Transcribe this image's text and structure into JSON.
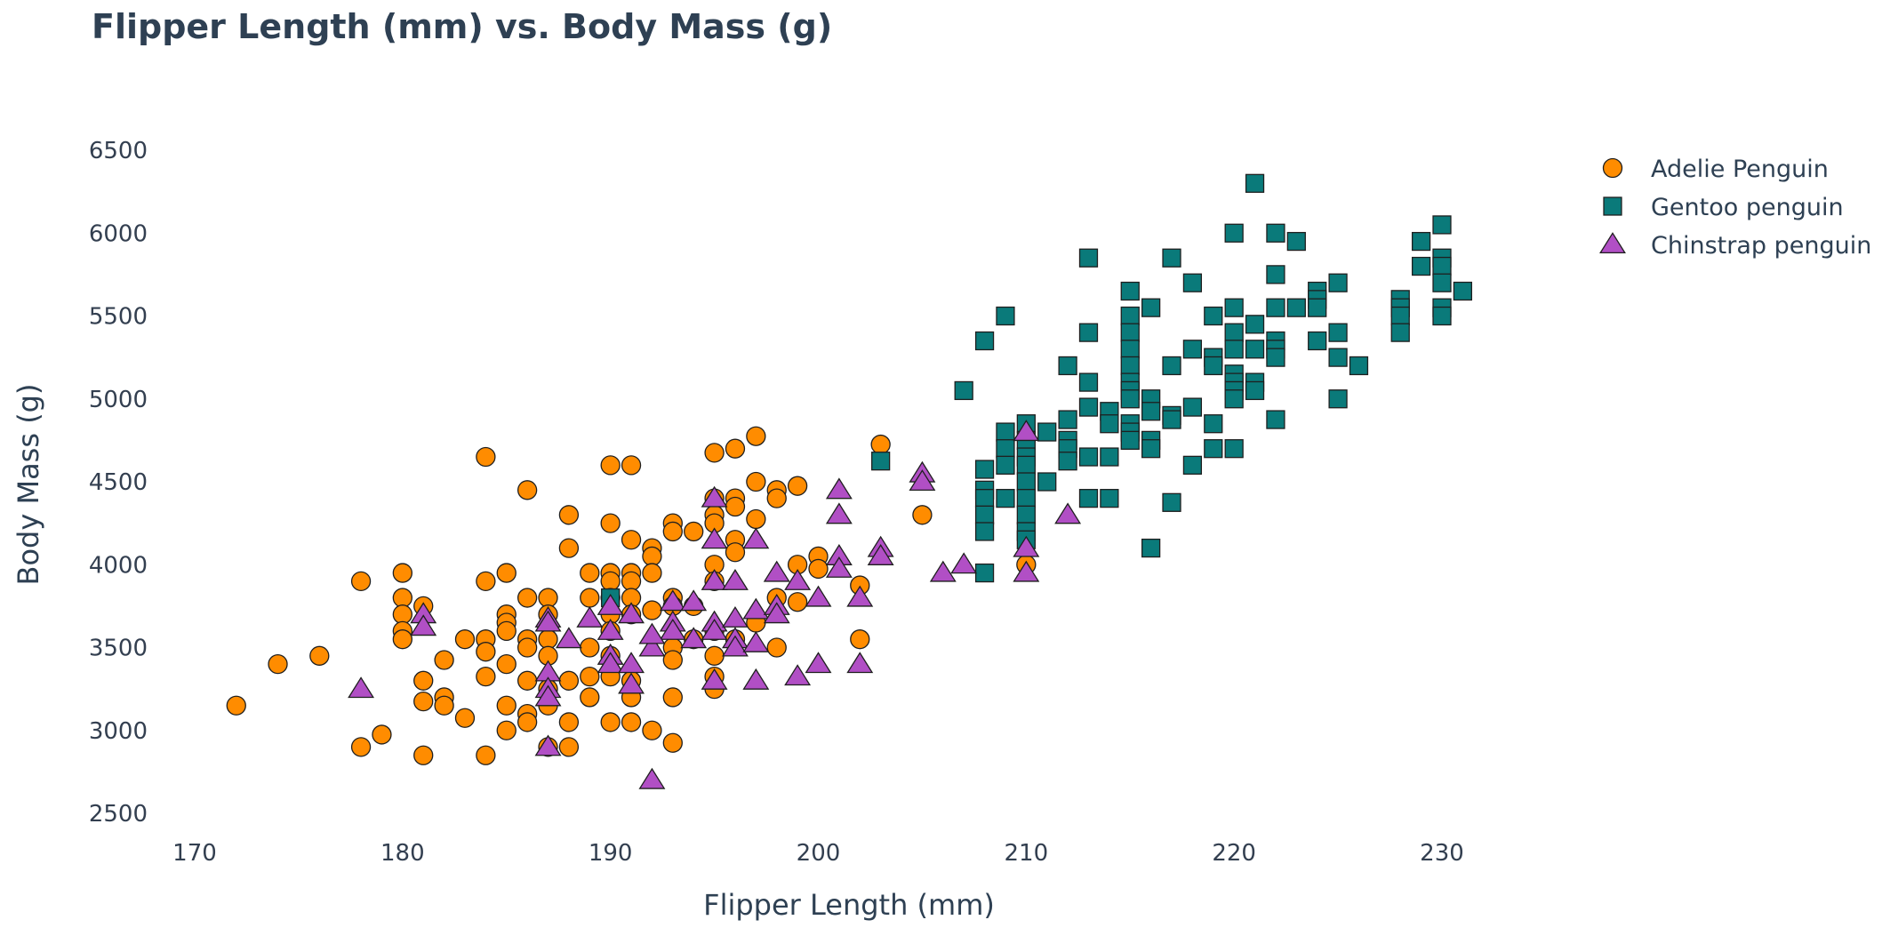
{
  "chart_data": {
    "type": "scatter",
    "title": "Flipper Length (mm) vs. Body Mass (g)",
    "xlabel": "Flipper Length (mm)",
    "ylabel": "Body Mass (g)",
    "xlim": [
      166,
      233
    ],
    "ylim": [
      2400,
      6600
    ],
    "x_ticks": [
      "170",
      "180",
      "190",
      "200",
      "210",
      "220",
      "230"
    ],
    "y_ticks": [
      "2500",
      "3000",
      "3500",
      "4000",
      "4500",
      "5000",
      "5500",
      "6000",
      "6500"
    ],
    "grid": false,
    "legend_position": "top-right",
    "series": [
      {
        "name": "Adelie Penguin",
        "marker": "circle",
        "color": "#ff8c00",
        "points": [
          [
            172,
            3150
          ],
          [
            174,
            3400
          ],
          [
            176,
            3450
          ],
          [
            178,
            3900
          ],
          [
            178,
            2900
          ],
          [
            179,
            2975
          ],
          [
            180,
            3950
          ],
          [
            180,
            3800
          ],
          [
            180,
            3700
          ],
          [
            180,
            3600
          ],
          [
            180,
            3550
          ],
          [
            181,
            3750
          ],
          [
            181,
            3300
          ],
          [
            181,
            3175
          ],
          [
            181,
            2850
          ],
          [
            182,
            3425
          ],
          [
            182,
            3200
          ],
          [
            182,
            3150
          ],
          [
            183,
            3550
          ],
          [
            183,
            3075
          ],
          [
            184,
            4650
          ],
          [
            184,
            3900
          ],
          [
            184,
            3550
          ],
          [
            184,
            3475
          ],
          [
            184,
            3325
          ],
          [
            184,
            2850
          ],
          [
            185,
            3950
          ],
          [
            185,
            3700
          ],
          [
            185,
            3650
          ],
          [
            185,
            3600
          ],
          [
            185,
            3400
          ],
          [
            185,
            3150
          ],
          [
            185,
            3000
          ],
          [
            186,
            4450
          ],
          [
            186,
            3800
          ],
          [
            186,
            3550
          ],
          [
            186,
            3500
          ],
          [
            186,
            3300
          ],
          [
            186,
            3100
          ],
          [
            186,
            3050
          ],
          [
            187,
            3800
          ],
          [
            187,
            3700
          ],
          [
            187,
            3550
          ],
          [
            187,
            3450
          ],
          [
            187,
            3250
          ],
          [
            187,
            3150
          ],
          [
            187,
            2900
          ],
          [
            188,
            4300
          ],
          [
            188,
            4100
          ],
          [
            188,
            3300
          ],
          [
            188,
            3050
          ],
          [
            188,
            2900
          ],
          [
            189,
            3950
          ],
          [
            189,
            3800
          ],
          [
            189,
            3500
          ],
          [
            189,
            3325
          ],
          [
            189,
            3200
          ],
          [
            190,
            4600
          ],
          [
            190,
            4250
          ],
          [
            190,
            3950
          ],
          [
            190,
            3900
          ],
          [
            190,
            3800
          ],
          [
            190,
            3700
          ],
          [
            190,
            3600
          ],
          [
            190,
            3450
          ],
          [
            190,
            3325
          ],
          [
            190,
            3050
          ],
          [
            191,
            4600
          ],
          [
            191,
            4150
          ],
          [
            191,
            3950
          ],
          [
            191,
            3900
          ],
          [
            191,
            3800
          ],
          [
            191,
            3700
          ],
          [
            191,
            3300
          ],
          [
            191,
            3200
          ],
          [
            191,
            3050
          ],
          [
            192,
            4100
          ],
          [
            192,
            4050
          ],
          [
            192,
            3950
          ],
          [
            192,
            3725
          ],
          [
            192,
            3000
          ],
          [
            193,
            4250
          ],
          [
            193,
            4200
          ],
          [
            193,
            3800
          ],
          [
            193,
            3750
          ],
          [
            193,
            3500
          ],
          [
            193,
            3425
          ],
          [
            193,
            3200
          ],
          [
            193,
            2925
          ],
          [
            194,
            4200
          ],
          [
            194,
            3750
          ],
          [
            194,
            3550
          ],
          [
            195,
            4675
          ],
          [
            195,
            4400
          ],
          [
            195,
            4300
          ],
          [
            195,
            4250
          ],
          [
            195,
            4000
          ],
          [
            195,
            3900
          ],
          [
            195,
            3600
          ],
          [
            195,
            3450
          ],
          [
            195,
            3325
          ],
          [
            195,
            3250
          ],
          [
            196,
            4700
          ],
          [
            196,
            4400
          ],
          [
            196,
            4350
          ],
          [
            196,
            4150
          ],
          [
            196,
            4075
          ],
          [
            196,
            3550
          ],
          [
            197,
            4775
          ],
          [
            197,
            4500
          ],
          [
            197,
            4275
          ],
          [
            197,
            3650
          ],
          [
            198,
            4450
          ],
          [
            198,
            4400
          ],
          [
            198,
            3800
          ],
          [
            198,
            3500
          ],
          [
            199,
            4475
          ],
          [
            199,
            4000
          ],
          [
            199,
            3775
          ],
          [
            200,
            4050
          ],
          [
            200,
            3975
          ],
          [
            202,
            3875
          ],
          [
            202,
            3550
          ],
          [
            203,
            4725
          ],
          [
            205,
            4300
          ],
          [
            210,
            4000
          ]
        ]
      },
      {
        "name": "Gentoo penguin",
        "marker": "square",
        "color": "#0a7a7a",
        "points": [
          [
            190,
            3800
          ],
          [
            203,
            4625
          ],
          [
            207,
            5050
          ],
          [
            208,
            5350
          ],
          [
            208,
            4575
          ],
          [
            208,
            4450
          ],
          [
            208,
            4400
          ],
          [
            208,
            4300
          ],
          [
            208,
            4200
          ],
          [
            208,
            3950
          ],
          [
            209,
            5500
          ],
          [
            209,
            4800
          ],
          [
            209,
            4700
          ],
          [
            209,
            4600
          ],
          [
            209,
            4400
          ],
          [
            210,
            4850
          ],
          [
            210,
            4750
          ],
          [
            210,
            4650
          ],
          [
            210,
            4600
          ],
          [
            210,
            4500
          ],
          [
            210,
            4400
          ],
          [
            210,
            4300
          ],
          [
            210,
            4200
          ],
          [
            210,
            4150
          ],
          [
            211,
            4800
          ],
          [
            211,
            4500
          ],
          [
            212,
            5200
          ],
          [
            212,
            4875
          ],
          [
            212,
            4750
          ],
          [
            212,
            4700
          ],
          [
            212,
            4625
          ],
          [
            213,
            5850
          ],
          [
            213,
            5400
          ],
          [
            213,
            5100
          ],
          [
            213,
            4950
          ],
          [
            213,
            4650
          ],
          [
            213,
            4400
          ],
          [
            214,
            4925
          ],
          [
            214,
            4850
          ],
          [
            214,
            4650
          ],
          [
            214,
            4400
          ],
          [
            215,
            5650
          ],
          [
            215,
            5500
          ],
          [
            215,
            5400
          ],
          [
            215,
            5300
          ],
          [
            215,
            5200
          ],
          [
            215,
            5100
          ],
          [
            215,
            5050
          ],
          [
            215,
            5000
          ],
          [
            215,
            4850
          ],
          [
            215,
            4800
          ],
          [
            215,
            4750
          ],
          [
            216,
            5550
          ],
          [
            216,
            5000
          ],
          [
            216,
            4925
          ],
          [
            216,
            4750
          ],
          [
            216,
            4700
          ],
          [
            216,
            4100
          ],
          [
            217,
            5850
          ],
          [
            217,
            5200
          ],
          [
            217,
            4900
          ],
          [
            217,
            4875
          ],
          [
            217,
            4375
          ],
          [
            218,
            5700
          ],
          [
            218,
            5300
          ],
          [
            218,
            4950
          ],
          [
            218,
            4600
          ],
          [
            219,
            5500
          ],
          [
            219,
            5250
          ],
          [
            219,
            5200
          ],
          [
            219,
            4850
          ],
          [
            219,
            4700
          ],
          [
            220,
            6000
          ],
          [
            220,
            5550
          ],
          [
            220,
            5400
          ],
          [
            220,
            5300
          ],
          [
            220,
            5150
          ],
          [
            220,
            5100
          ],
          [
            220,
            5050
          ],
          [
            220,
            5000
          ],
          [
            220,
            4700
          ],
          [
            221,
            6300
          ],
          [
            221,
            5450
          ],
          [
            221,
            5300
          ],
          [
            221,
            5100
          ],
          [
            221,
            5050
          ],
          [
            222,
            6000
          ],
          [
            222,
            5750
          ],
          [
            222,
            5550
          ],
          [
            222,
            5350
          ],
          [
            222,
            5300
          ],
          [
            222,
            5250
          ],
          [
            222,
            4875
          ],
          [
            223,
            5950
          ],
          [
            223,
            5550
          ],
          [
            224,
            5650
          ],
          [
            224,
            5600
          ],
          [
            224,
            5550
          ],
          [
            224,
            5350
          ],
          [
            225,
            5700
          ],
          [
            225,
            5400
          ],
          [
            225,
            5250
          ],
          [
            225,
            5000
          ],
          [
            226,
            5200
          ],
          [
            228,
            5600
          ],
          [
            228,
            5550
          ],
          [
            228,
            5500
          ],
          [
            228,
            5400
          ],
          [
            229,
            5950
          ],
          [
            229,
            5800
          ],
          [
            230,
            6050
          ],
          [
            230,
            5850
          ],
          [
            230,
            5800
          ],
          [
            230,
            5700
          ],
          [
            230,
            5550
          ],
          [
            230,
            5500
          ],
          [
            231,
            5650
          ]
        ]
      },
      {
        "name": "Chinstrap penguin",
        "marker": "triangle-up",
        "color": "#b14fc5",
        "points": [
          [
            178,
            3250
          ],
          [
            181,
            3700
          ],
          [
            181,
            3625
          ],
          [
            187,
            3675
          ],
          [
            187,
            3650
          ],
          [
            187,
            3350
          ],
          [
            187,
            3250
          ],
          [
            187,
            3200
          ],
          [
            187,
            2900
          ],
          [
            188,
            3550
          ],
          [
            189,
            3675
          ],
          [
            190,
            3600
          ],
          [
            190,
            3450
          ],
          [
            190,
            3400
          ],
          [
            190,
            3750
          ],
          [
            191,
            3700
          ],
          [
            191,
            3400
          ],
          [
            191,
            3275
          ],
          [
            192,
            3500
          ],
          [
            192,
            2700
          ],
          [
            193,
            3775
          ],
          [
            193,
            3650
          ],
          [
            193,
            3600
          ],
          [
            194,
            3775
          ],
          [
            194,
            3550
          ],
          [
            195,
            4400
          ],
          [
            195,
            4150
          ],
          [
            195,
            3900
          ],
          [
            195,
            3650
          ],
          [
            195,
            3600
          ],
          [
            195,
            3300
          ],
          [
            196,
            3900
          ],
          [
            196,
            3675
          ],
          [
            196,
            3550
          ],
          [
            196,
            3500
          ],
          [
            197,
            4150
          ],
          [
            197,
            3725
          ],
          [
            197,
            3525
          ],
          [
            197,
            3300
          ],
          [
            198,
            3950
          ],
          [
            198,
            3750
          ],
          [
            198,
            3700
          ],
          [
            199,
            3900
          ],
          [
            199,
            3325
          ],
          [
            200,
            3800
          ],
          [
            200,
            3400
          ],
          [
            201,
            4450
          ],
          [
            201,
            4300
          ],
          [
            201,
            4050
          ],
          [
            201,
            3975
          ],
          [
            202,
            3800
          ],
          [
            202,
            3400
          ],
          [
            203,
            4100
          ],
          [
            203,
            4050
          ],
          [
            205,
            4550
          ],
          [
            205,
            4500
          ],
          [
            206,
            3950
          ],
          [
            207,
            4000
          ],
          [
            210,
            4800
          ],
          [
            210,
            4100
          ],
          [
            210,
            3950
          ],
          [
            212,
            4300
          ],
          [
            192,
            3575
          ]
        ]
      }
    ]
  }
}
